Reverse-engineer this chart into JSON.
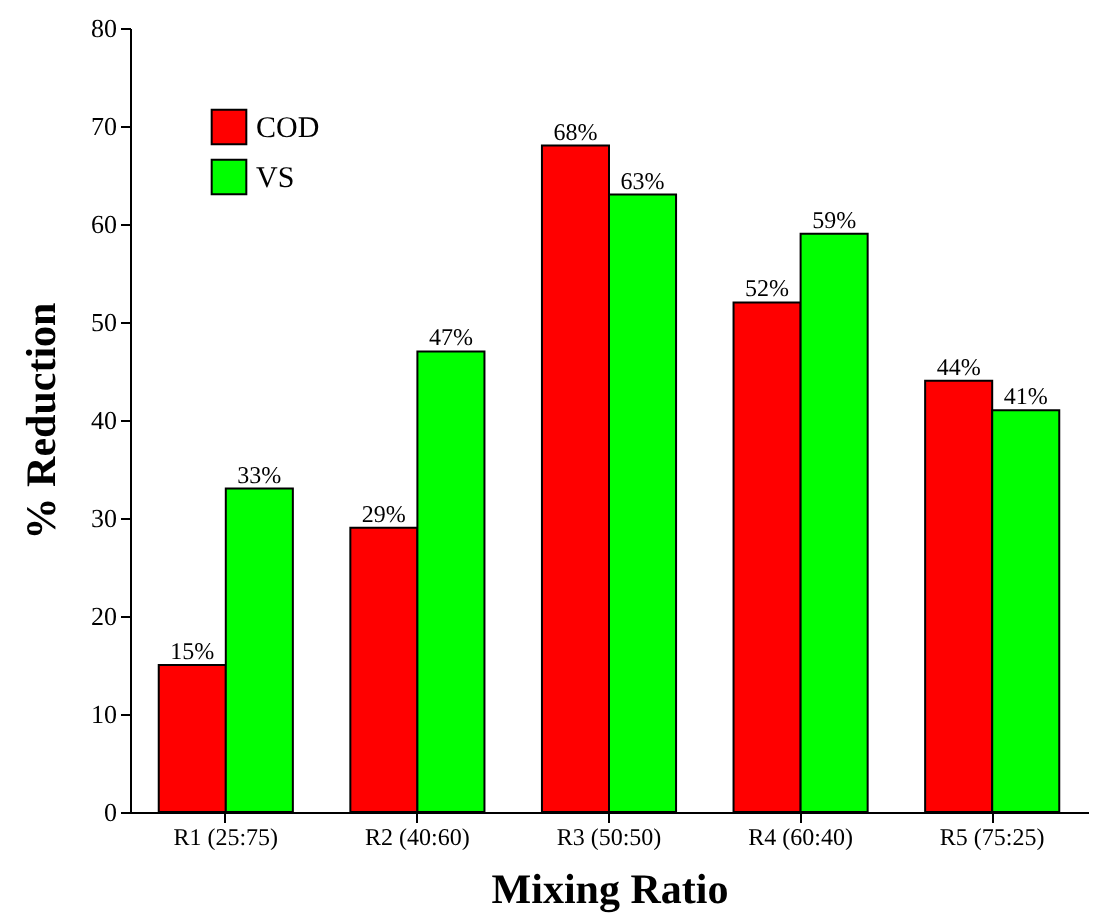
{
  "chart_data": {
    "type": "bar",
    "xlabel": "Mixing Ratio",
    "ylabel": "% Reduction",
    "categories": [
      "R1 (25:75)",
      "R2 (40:60)",
      "R3 (50:50)",
      "R4 (60:40)",
      "R5 (75:25)"
    ],
    "series": [
      {
        "name": "COD",
        "color": "#ff0000",
        "values": [
          15,
          29,
          68,
          52,
          44
        ],
        "value_labels": [
          "15%",
          "29%",
          "68%",
          "52%",
          "44%"
        ]
      },
      {
        "name": "VS",
        "color": "#00ff00",
        "values": [
          33,
          47,
          63,
          59,
          41
        ],
        "value_labels": [
          "33%",
          "47%",
          "63%",
          "59%",
          "41%"
        ]
      }
    ],
    "ylim": [
      0,
      80
    ],
    "yticks": [
      0,
      10,
      20,
      30,
      40,
      50,
      60,
      70,
      80
    ],
    "grid": false,
    "legend": "top left"
  }
}
